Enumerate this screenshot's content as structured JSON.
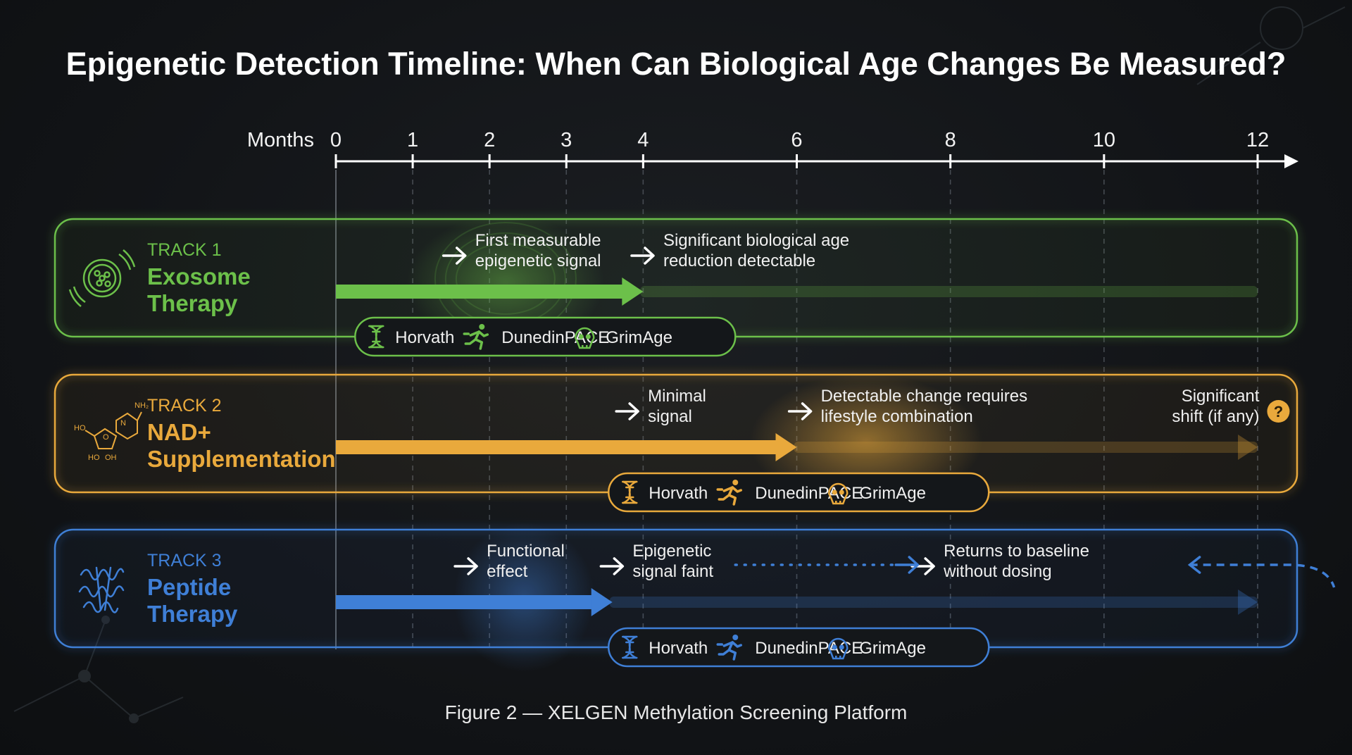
{
  "title": "Epigenetic Detection Timeline: When Can Biological Age Changes Be Measured?",
  "axis": {
    "label": "Months",
    "ticks": [
      0,
      1,
      2,
      3,
      4,
      6,
      8,
      10,
      12
    ],
    "range": [
      0,
      12
    ]
  },
  "colors": {
    "exosome": "#6cc04a",
    "nad": "#e9a93c",
    "peptide": "#3f7fd6",
    "axis": "#ffffff",
    "background": "#121417"
  },
  "markers": [
    "Horvath",
    "DunedinPACE",
    "GrimAge"
  ],
  "marker_icons": [
    "dna-icon",
    "runner-icon",
    "skull-icon"
  ],
  "tracks": [
    {
      "id": "exosome",
      "number": "TRACK 1",
      "name_lines": [
        "Exosome",
        "Therapy"
      ],
      "icon": "exosome-icon",
      "solid_end_month": 4,
      "faint_end_month": 12,
      "notes": [
        {
          "at_month": 1.4,
          "lines": [
            "First measurable",
            "epigenetic signal"
          ]
        },
        {
          "at_month": 3.85,
          "lines": [
            "Significant biological age",
            "reduction detectable"
          ]
        }
      ],
      "pill_start_month": 0.25
    },
    {
      "id": "nad",
      "number": "TRACK 2",
      "name_lines": [
        "NAD+",
        "Supplementation"
      ],
      "icon": "nad-molecule-icon",
      "solid_end_month": 6,
      "faint_end_month": 12,
      "notes": [
        {
          "at_month": 3.65,
          "lines": [
            "Minimal",
            "signal"
          ]
        },
        {
          "at_month": 5.9,
          "lines": [
            "Detectable change requires",
            "lifestyle combination"
          ]
        },
        {
          "at_month": 11.5,
          "lines": [
            "Significant",
            "shift (if any)"
          ],
          "align": "right"
        }
      ],
      "question_icon": "question-icon",
      "pill_start_month": 3.55
    },
    {
      "id": "peptide",
      "number": "TRACK 3",
      "name_lines": [
        "Peptide",
        "Therapy"
      ],
      "icon": "protein-icon",
      "solid_end_month": 3.6,
      "faint_end_month": 12,
      "notes": [
        {
          "at_month": 1.55,
          "lines": [
            "Functional",
            "effect"
          ]
        },
        {
          "at_month": 3.45,
          "lines": [
            "Epigenetic",
            "signal faint"
          ]
        },
        {
          "at_month": 7.5,
          "lines": [
            "Returns to baseline",
            "without dosing"
          ]
        }
      ],
      "pill_start_month": 3.55
    }
  ],
  "caption": "Figure 2 — XELGEN Methylation Screening Platform"
}
